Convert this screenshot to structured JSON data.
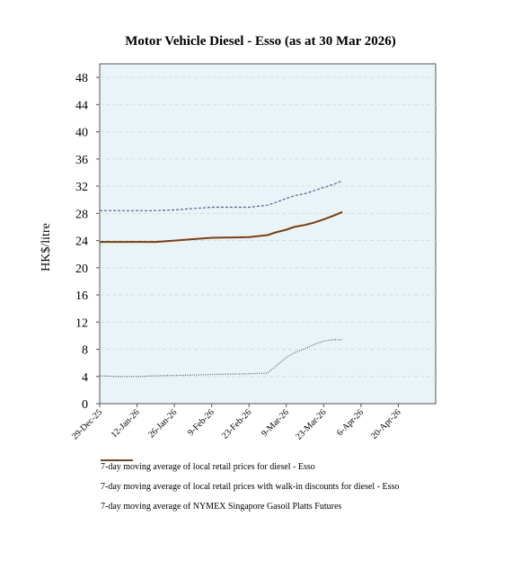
{
  "chart_data": {
    "type": "line",
    "title": "Motor Vehicle Diesel - Esso (as at 30 Mar 2026)",
    "ylabel": "HK$/litre",
    "xlabel": "",
    "ylim": [
      0,
      50
    ],
    "yticks": [
      0,
      4,
      8,
      12,
      16,
      20,
      24,
      28,
      32,
      36,
      40,
      44,
      48
    ],
    "xlim": [
      "2025-12-29",
      "2026-05-04"
    ],
    "xtick_labels": [
      "29-Dec-25",
      "12-Jan-26",
      "26-Jan-26",
      "9-Feb-26",
      "23-Feb-26",
      "9-Mar-26",
      "23-Mar-26",
      "6-Apr-26",
      "20-Apr-26"
    ],
    "grid": true,
    "legend_position": "bottom",
    "series": [
      {
        "name": "7-day moving average of local retail prices for diesel - Esso",
        "color": "#5a5a8c",
        "style": "dashed",
        "points": [
          [
            "2025-12-29",
            28.4
          ],
          [
            "2026-01-19",
            28.4
          ],
          [
            "2026-01-26",
            28.5
          ],
          [
            "2026-02-02",
            28.7
          ],
          [
            "2026-02-09",
            28.9
          ],
          [
            "2026-02-23",
            28.9
          ],
          [
            "2026-03-02",
            29.2
          ],
          [
            "2026-03-05",
            29.6
          ],
          [
            "2026-03-09",
            30.2
          ],
          [
            "2026-03-12",
            30.6
          ],
          [
            "2026-03-16",
            30.9
          ],
          [
            "2026-03-19",
            31.3
          ],
          [
            "2026-03-23",
            31.8
          ],
          [
            "2026-03-27",
            32.3
          ],
          [
            "2026-03-30",
            32.8
          ]
        ]
      },
      {
        "name": "7-day moving average of local retail prices with walk-in discounts for diesel - Esso",
        "color": "#7b3f10",
        "style": "solid",
        "points": [
          [
            "2025-12-29",
            23.8
          ],
          [
            "2026-01-19",
            23.8
          ],
          [
            "2026-01-26",
            24.0
          ],
          [
            "2026-02-02",
            24.2
          ],
          [
            "2026-02-09",
            24.4
          ],
          [
            "2026-02-23",
            24.5
          ],
          [
            "2026-03-02",
            24.8
          ],
          [
            "2026-03-05",
            25.2
          ],
          [
            "2026-03-09",
            25.6
          ],
          [
            "2026-03-12",
            26.0
          ],
          [
            "2026-03-16",
            26.3
          ],
          [
            "2026-03-19",
            26.6
          ],
          [
            "2026-03-23",
            27.1
          ],
          [
            "2026-03-27",
            27.7
          ],
          [
            "2026-03-30",
            28.2
          ]
        ]
      },
      {
        "name": "7-day moving average of NYMEX Singapore Gasoil Platts Futures",
        "color": "#4a5a6a",
        "style": "dotted",
        "points": [
          [
            "2025-12-29",
            4.1
          ],
          [
            "2026-01-05",
            4.0
          ],
          [
            "2026-01-12",
            4.0
          ],
          [
            "2026-01-19",
            4.1
          ],
          [
            "2026-02-02",
            4.2
          ],
          [
            "2026-02-09",
            4.3
          ],
          [
            "2026-02-23",
            4.4
          ],
          [
            "2026-03-02",
            4.5
          ],
          [
            "2026-03-05",
            5.5
          ],
          [
            "2026-03-09",
            6.8
          ],
          [
            "2026-03-12",
            7.5
          ],
          [
            "2026-03-16",
            8.1
          ],
          [
            "2026-03-20",
            8.8
          ],
          [
            "2026-03-23",
            9.2
          ],
          [
            "2026-03-26",
            9.4
          ],
          [
            "2026-03-30",
            9.4
          ]
        ]
      }
    ]
  },
  "colors": {
    "plot_background": "#e9f4f8",
    "gridline": "#d0dde2"
  }
}
